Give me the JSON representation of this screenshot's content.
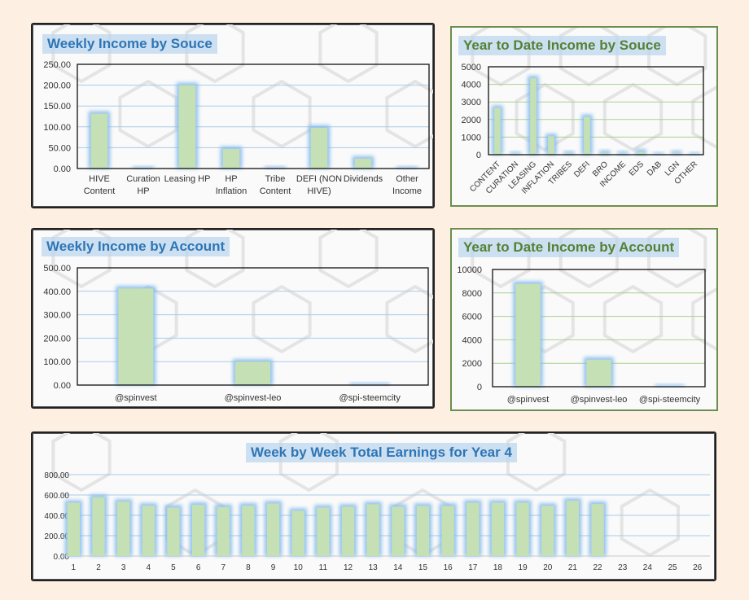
{
  "colors": {
    "bar": "#c5e0b4",
    "glow": "#7fb8ee",
    "grid_blue": "#a9cbe8",
    "grid_green": "#a9d18e",
    "title_blue": "#2e75b6",
    "title_green": "#548235"
  },
  "chart_data": [
    {
      "id": "weekly-source",
      "type": "bar",
      "title": "Weekly Income by Souce",
      "categories": [
        [
          "HIVE",
          "Content"
        ],
        [
          "Curation",
          "HP"
        ],
        [
          "Leasing HP"
        ],
        [
          "HP",
          "Inflation"
        ],
        [
          "Tribe",
          "Content"
        ],
        [
          "DEFI (NON",
          "HIVE)"
        ],
        [
          "Dividends"
        ],
        [
          "Other",
          "Income"
        ]
      ],
      "values": [
        131.5,
        0,
        200,
        47,
        0,
        98,
        24,
        0
      ],
      "ylim": [
        0,
        250
      ],
      "yticks": [
        "0.00",
        "50.00",
        "100.00",
        "150.00",
        "200.00",
        "250.00"
      ],
      "grid": true
    },
    {
      "id": "ytd-source",
      "type": "bar",
      "title": "Year to Date Income by Souce",
      "categories": [
        "CONTENT",
        "CURATION",
        "LEASING",
        "INFLATION",
        "TRIBES",
        "DEFI",
        "BRO",
        "INCOME",
        "EDS",
        "DAB",
        "LGN",
        "OTHER"
      ],
      "values": [
        2660,
        30,
        4350,
        1050,
        60,
        2150,
        100,
        50,
        170,
        0,
        80,
        0
      ],
      "ylim": [
        0,
        5000
      ],
      "yticks": [
        "0",
        "1000",
        "2000",
        "3000",
        "4000",
        "5000"
      ],
      "grid": true
    },
    {
      "id": "weekly-account",
      "type": "bar",
      "title": "Weekly Income by Account",
      "categories": [
        "@spinvest",
        "@spinvest-leo",
        "@spi-steemcity"
      ],
      "values": [
        412,
        100,
        0
      ],
      "ylim": [
        0,
        500
      ],
      "yticks": [
        "0.00",
        "100.00",
        "200.00",
        "300.00",
        "400.00",
        "500.00"
      ],
      "grid": true
    },
    {
      "id": "ytd-account",
      "type": "bar",
      "title": "Year to Date Income by Account",
      "categories": [
        "@spinvest",
        "@spinvest-leo",
        "@spi-steemcity"
      ],
      "values": [
        8780,
        2310,
        0
      ],
      "ylim": [
        0,
        10000
      ],
      "yticks": [
        "0",
        "2000",
        "4000",
        "6000",
        "8000",
        "10000"
      ],
      "grid": true
    },
    {
      "id": "weekly-total",
      "type": "bar",
      "title": "Week by Week Total Earnings for Year 4",
      "categories": [
        "1",
        "2",
        "3",
        "4",
        "5",
        "6",
        "7",
        "8",
        "9",
        "10",
        "11",
        "12",
        "13",
        "14",
        "15",
        "16",
        "17",
        "18",
        "19",
        "20",
        "21",
        "22",
        "23",
        "24",
        "25",
        "26"
      ],
      "values": [
        524,
        578,
        535,
        495,
        477,
        503,
        482,
        495,
        517,
        445,
        477,
        485,
        509,
        485,
        493,
        493,
        524,
        524,
        524,
        493,
        543,
        511,
        null,
        null,
        null,
        null
      ],
      "ylim": [
        0,
        800
      ],
      "yticks": [
        "0.00",
        "200.00",
        "400.00",
        "600.00",
        "800.00"
      ],
      "grid": true
    }
  ]
}
